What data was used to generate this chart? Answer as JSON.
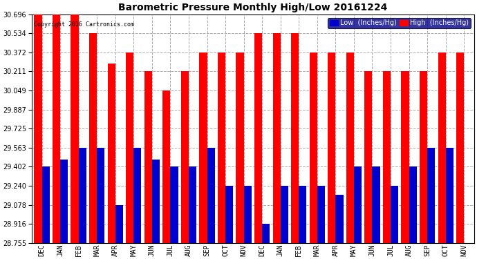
{
  "title": "Barometric Pressure Monthly High/Low 20161224",
  "copyright": "Copyright 2016 Cartronics.com",
  "legend_low": "Low  (Inches/Hg)",
  "legend_high": "High  (Inches/Hg)",
  "months": [
    "DEC",
    "JAN",
    "FEB",
    "MAR",
    "APR",
    "MAY",
    "JUN",
    "JUL",
    "AUG",
    "SEP",
    "OCT",
    "NOV",
    "DEC",
    "JAN",
    "FEB",
    "MAR",
    "APR",
    "MAY",
    "JUN",
    "JUL",
    "AUG",
    "SEP",
    "OCT",
    "NOV"
  ],
  "high_values": [
    30.696,
    30.696,
    30.696,
    30.534,
    30.28,
    30.372,
    30.211,
    30.049,
    30.211,
    30.372,
    30.372,
    30.372,
    30.534,
    30.534,
    30.534,
    30.372,
    30.372,
    30.372,
    30.211,
    30.211,
    30.211,
    30.211,
    30.372,
    30.372
  ],
  "low_values": [
    29.402,
    29.463,
    29.563,
    29.563,
    29.078,
    29.563,
    29.463,
    29.402,
    29.402,
    29.563,
    29.24,
    29.24,
    28.916,
    29.24,
    29.24,
    29.24,
    29.163,
    29.402,
    29.402,
    29.24,
    29.402,
    29.563,
    29.563,
    28.755
  ],
  "high_color": "#ff0000",
  "low_color": "#0000cc",
  "bg_color": "#ffffff",
  "grid_color": "#aaaaaa",
  "ylim_min": 28.755,
  "ylim_max": 30.696,
  "yticks": [
    28.755,
    28.916,
    29.078,
    29.24,
    29.402,
    29.563,
    29.725,
    29.887,
    30.049,
    30.211,
    30.372,
    30.534,
    30.696
  ]
}
